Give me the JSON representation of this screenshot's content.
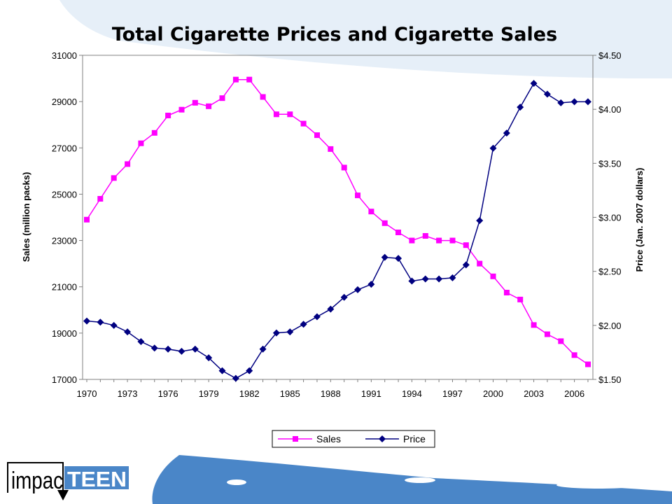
{
  "chart_data": {
    "type": "line",
    "title": "Total Cigarette Prices and Cigarette Sales",
    "ylabel": "Sales (million packs)",
    "y2label": "Price (Jan. 2007 dollars)",
    "x": [
      1970,
      1971,
      1972,
      1973,
      1974,
      1975,
      1976,
      1977,
      1978,
      1979,
      1980,
      1981,
      1982,
      1983,
      1984,
      1985,
      1986,
      1987,
      1988,
      1989,
      1990,
      1991,
      1992,
      1993,
      1994,
      1995,
      1996,
      1997,
      1998,
      1999,
      2000,
      2001,
      2002,
      2003,
      2004,
      2005,
      2006,
      2007
    ],
    "xticks": [
      "1970",
      "1973",
      "1976",
      "1979",
      "1982",
      "1985",
      "1988",
      "1991",
      "1994",
      "1997",
      "2000",
      "2003",
      "2006"
    ],
    "ylim": [
      17000,
      31000
    ],
    "yticks": [
      "17000",
      "19000",
      "21000",
      "23000",
      "25000",
      "27000",
      "29000",
      "31000"
    ],
    "y2lim": [
      1.5,
      4.5
    ],
    "y2ticks": [
      "$1.50",
      "$2.00",
      "$2.50",
      "$3.00",
      "$3.50",
      "$4.00",
      "$4.50"
    ],
    "grid": false,
    "legend_position": "bottom",
    "series": [
      {
        "name": "Sales",
        "axis": "left",
        "color": "#ff00ff",
        "marker": "square",
        "values": [
          23900,
          24800,
          25700,
          26300,
          27200,
          27650,
          28400,
          28650,
          28950,
          28800,
          29150,
          29950,
          29950,
          29200,
          28450,
          28450,
          28050,
          27550,
          26950,
          26150,
          24950,
          24250,
          23750,
          23350,
          23000,
          23200,
          23000,
          23000,
          22800,
          22000,
          21450,
          20750,
          20450,
          19350,
          18950,
          18650,
          18050,
          17650
        ]
      },
      {
        "name": "Price",
        "axis": "right",
        "color": "#000080",
        "marker": "diamond",
        "values": [
          2.04,
          2.03,
          2.0,
          1.94,
          1.85,
          1.79,
          1.78,
          1.76,
          1.78,
          1.7,
          1.58,
          1.51,
          1.58,
          1.78,
          1.93,
          1.94,
          2.01,
          2.08,
          2.15,
          2.26,
          2.33,
          2.38,
          2.63,
          2.62,
          2.41,
          2.43,
          2.43,
          2.44,
          2.56,
          2.97,
          3.64,
          3.78,
          4.02,
          4.24,
          4.14,
          4.06,
          4.07,
          4.07
        ]
      }
    ]
  },
  "branding": {
    "logo_left": "impac",
    "logo_right": "TEEN",
    "accent_color": "#4a86c8",
    "light_color": "#e6eff8"
  }
}
